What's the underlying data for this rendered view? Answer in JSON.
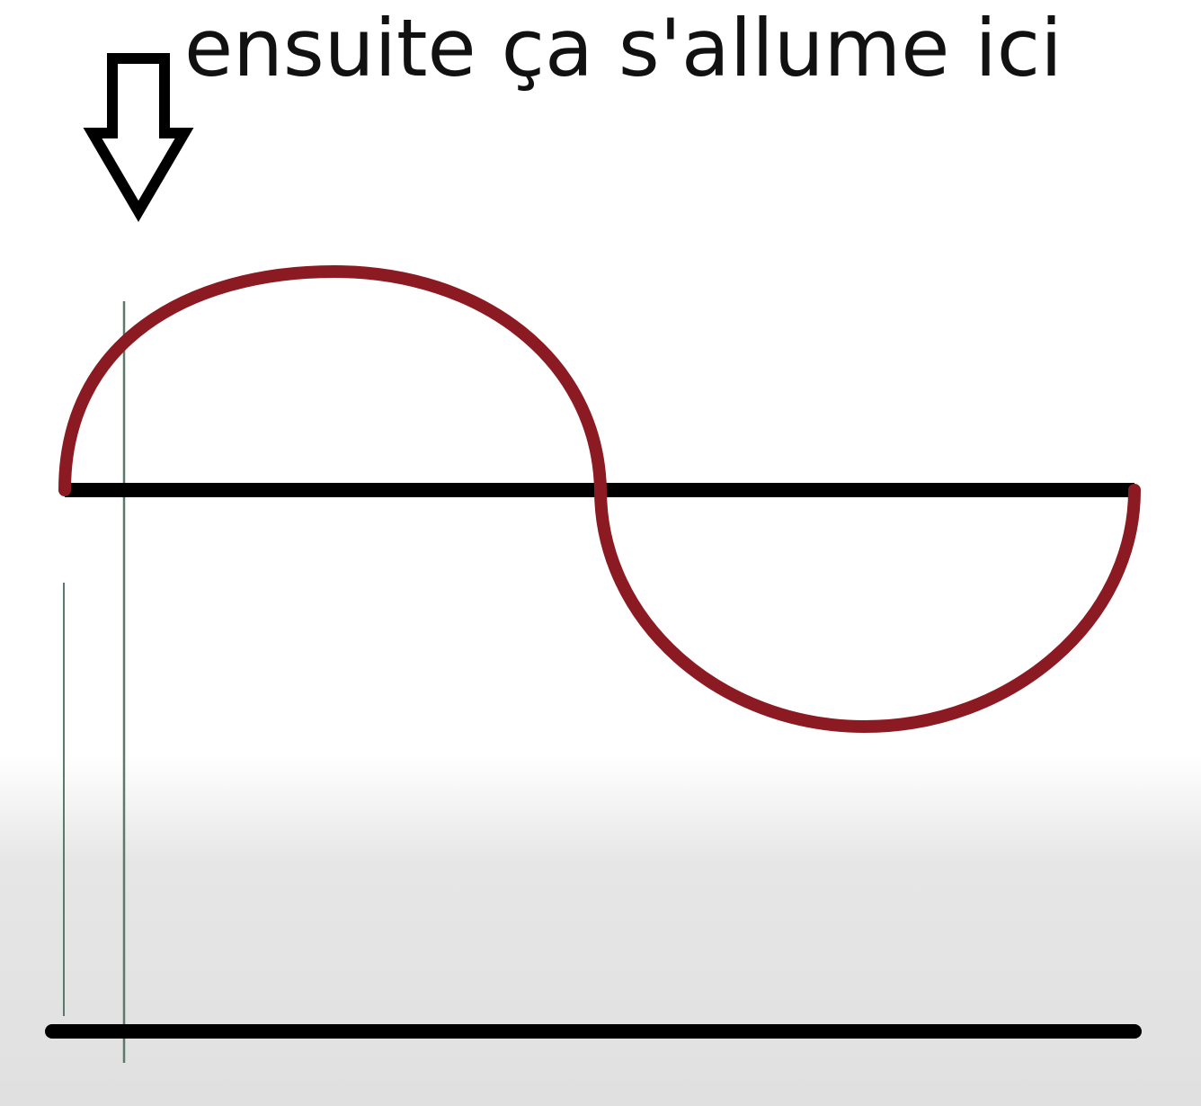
{
  "annotation": {
    "text": "ensuite ça s'allume ici",
    "arrow_icon": "down-arrow-icon"
  },
  "colors": {
    "waveform": "#8c1a22",
    "axis": "#000000",
    "marker_line": "#5a7a6a",
    "background": "#ffffff"
  },
  "waveform": {
    "shape": "sine",
    "cycles": 1
  }
}
